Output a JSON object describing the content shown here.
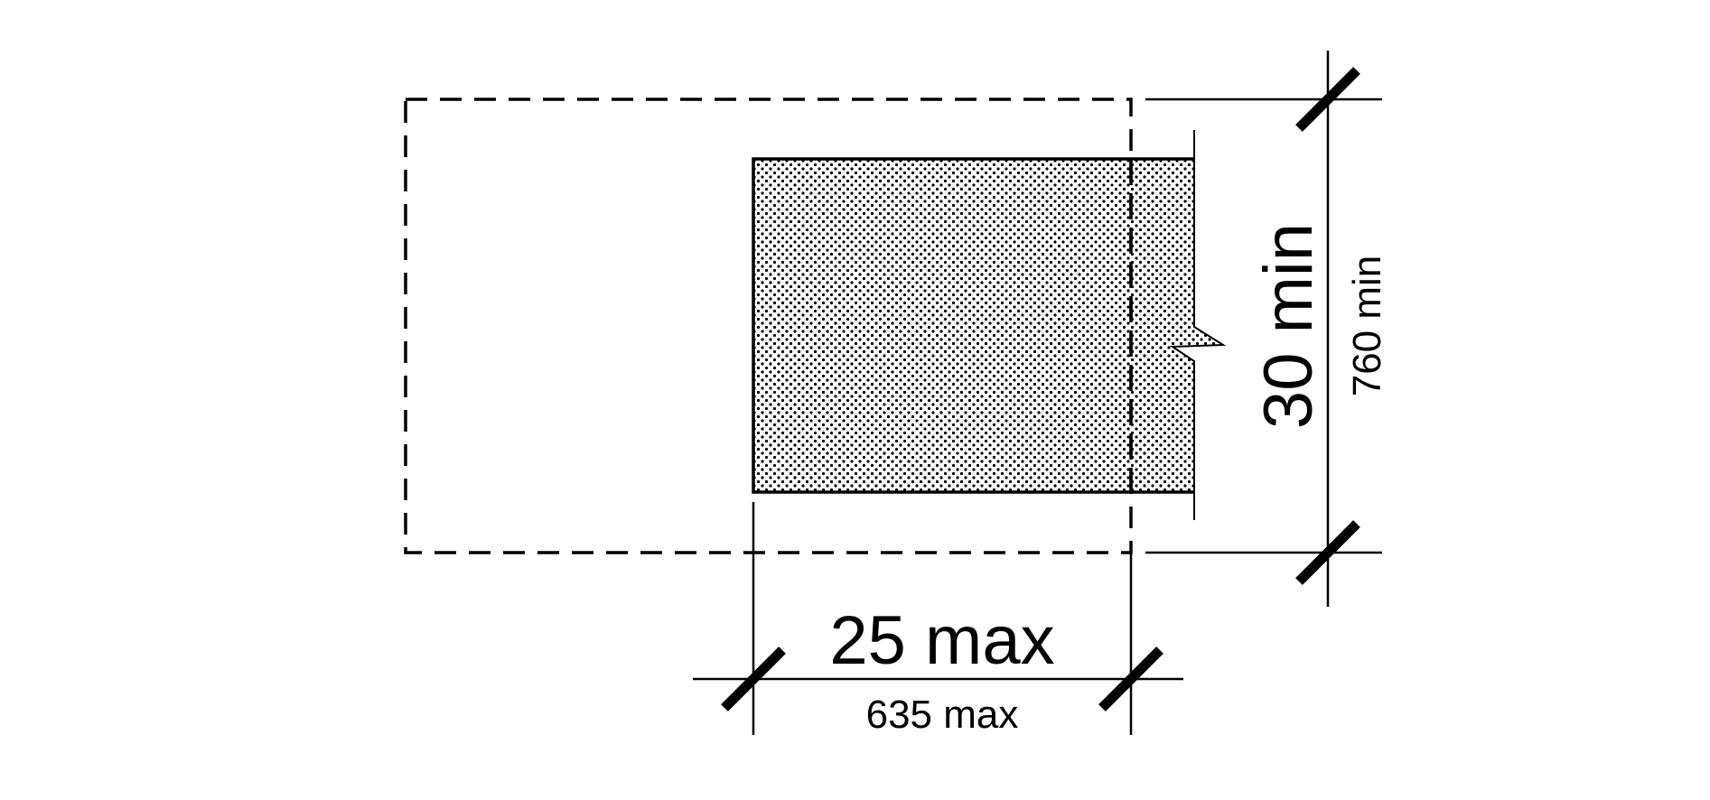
{
  "dimensions": {
    "width_imperial": "25 max",
    "width_metric": "635 max",
    "depth_imperial": "30 min",
    "depth_metric": "760 min"
  },
  "colors": {
    "line": "#000000",
    "background": "#ffffff",
    "fill_dots": "#000000"
  }
}
